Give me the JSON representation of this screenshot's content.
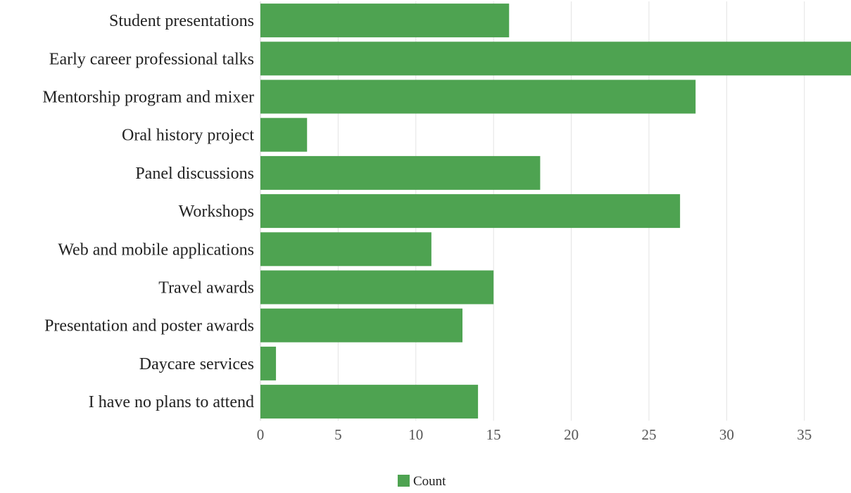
{
  "chart_data": {
    "type": "bar",
    "orientation": "horizontal",
    "categories": [
      "Student presentations",
      "Early career professional talks",
      "Mentorship program and mixer",
      "Oral history project",
      "Panel discussions",
      "Workshops",
      "Web and mobile applications",
      "Travel awards",
      "Presentation and poster awards",
      "Daycare services",
      "I have no plans to attend"
    ],
    "series": [
      {
        "name": "Count",
        "values": [
          16,
          38,
          28,
          3,
          18,
          27,
          11,
          15,
          13,
          1,
          14
        ],
        "color": "#4ea351"
      }
    ],
    "xticks": [
      0,
      5,
      10,
      15,
      20,
      25,
      30,
      35
    ],
    "xlim": [
      0,
      38
    ],
    "grid": true,
    "legend": "bottom-center",
    "title": "",
    "xlabel": "",
    "ylabel": ""
  }
}
